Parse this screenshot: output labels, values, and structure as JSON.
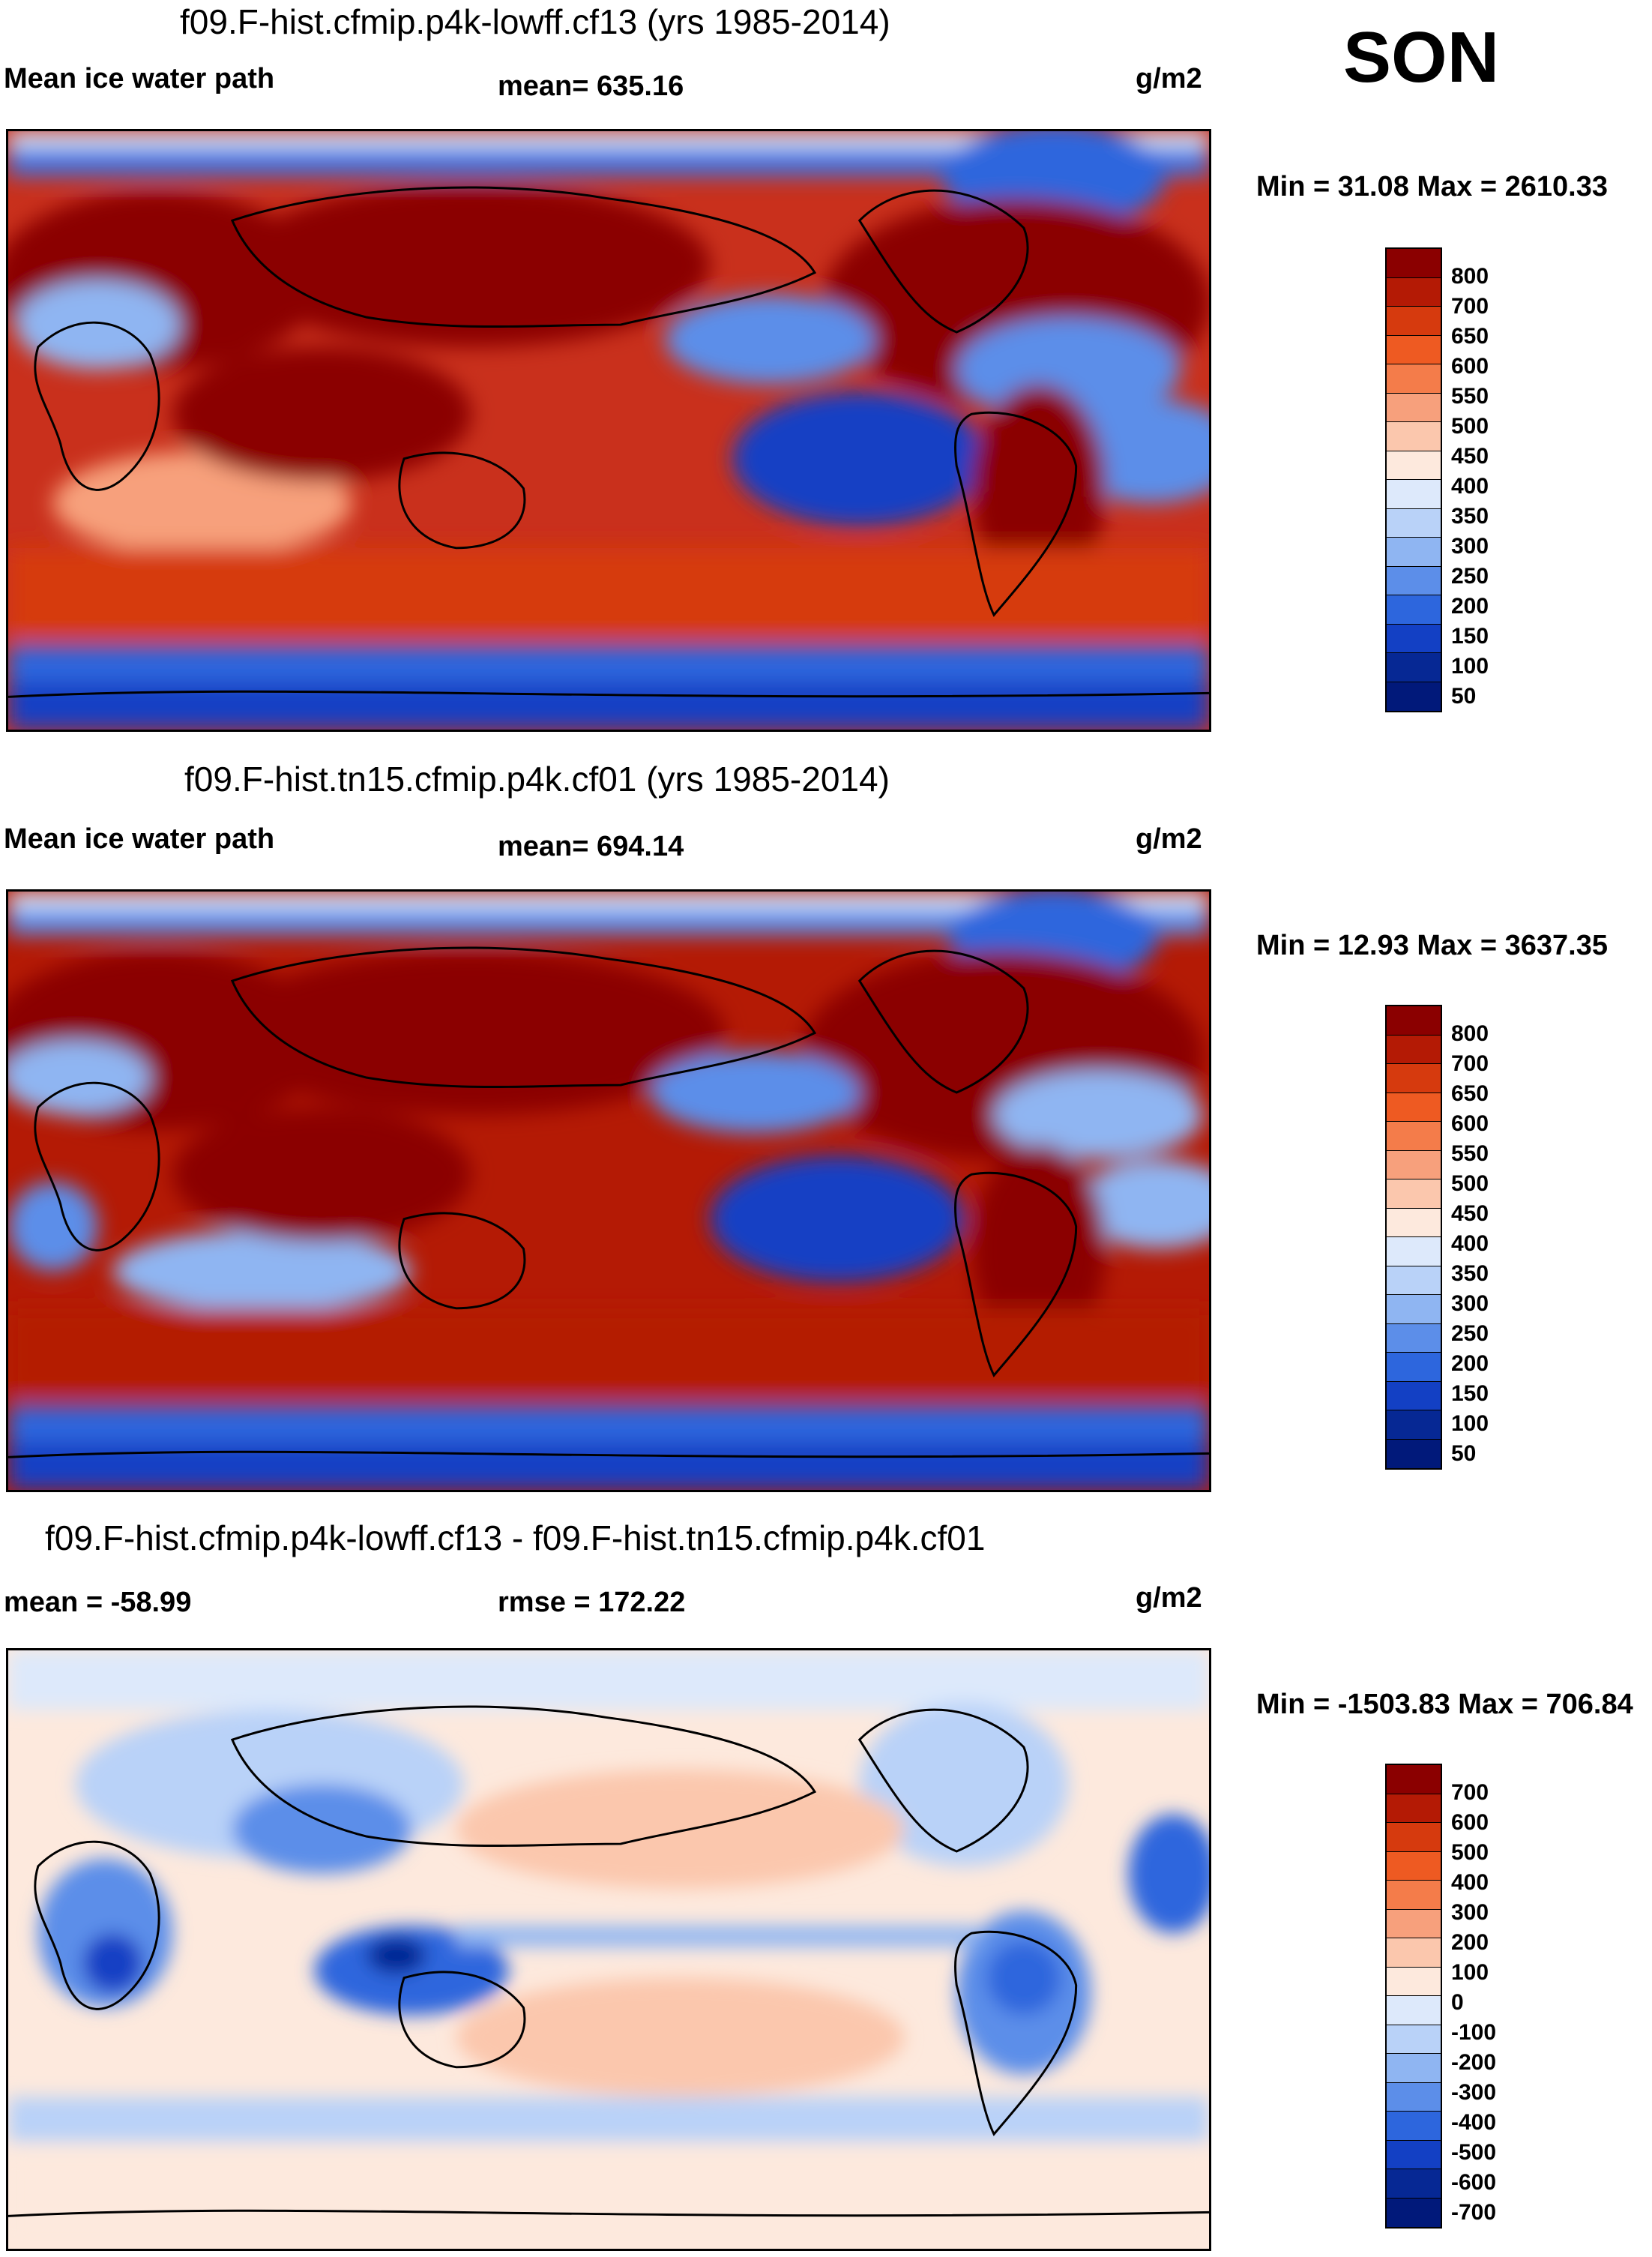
{
  "season": "SON",
  "units": "g/m2",
  "panels": [
    {
      "title": "f09.F-hist.cfmip.p4k-lowff.cf13 (yrs 1985-2014)",
      "left_label": "Mean ice water path",
      "center_label": "mean= 635.16",
      "unit_label": "g/m2",
      "minmax": "Min =  31.08 Max = 2610.33",
      "colorbar": {
        "labels": [
          "800",
          "700",
          "650",
          "600",
          "550",
          "500",
          "450",
          "400",
          "350",
          "300",
          "250",
          "200",
          "150",
          "100",
          "50"
        ],
        "colors": [
          "#8b0000",
          "#b41a05",
          "#d63a0e",
          "#ee5a22",
          "#f47c4a",
          "#f7a07c",
          "#fbc7ad",
          "#fde9dd",
          "#dde9fb",
          "#b9d2f8",
          "#8fb5f2",
          "#5c8ee9",
          "#2d66dd",
          "#1340c4",
          "#062894",
          "#01197a"
        ]
      }
    },
    {
      "title": "f09.F-hist.tn15.cfmip.p4k.cf01 (yrs 1985-2014)",
      "left_label": "Mean ice water path",
      "center_label": "mean= 694.14",
      "unit_label": "g/m2",
      "minmax": "Min =  12.93 Max = 3637.35",
      "colorbar": {
        "labels": [
          "800",
          "700",
          "650",
          "600",
          "550",
          "500",
          "450",
          "400",
          "350",
          "300",
          "250",
          "200",
          "150",
          "100",
          "50"
        ],
        "colors": [
          "#8b0000",
          "#b41a05",
          "#d63a0e",
          "#ee5a22",
          "#f47c4a",
          "#f7a07c",
          "#fbc7ad",
          "#fde9dd",
          "#dde9fb",
          "#b9d2f8",
          "#8fb5f2",
          "#5c8ee9",
          "#2d66dd",
          "#1340c4",
          "#062894",
          "#01197a"
        ]
      }
    },
    {
      "title": "f09.F-hist.cfmip.p4k-lowff.cf13 - f09.F-hist.tn15.cfmip.p4k.cf01",
      "left_label": "mean = -58.99",
      "center_label": "rmse = 172.22",
      "unit_label": "g/m2",
      "minmax": "Min = -1503.83 Max = 706.84",
      "colorbar": {
        "labels": [
          "700",
          "600",
          "500",
          "400",
          "300",
          "200",
          "100",
          "0",
          "-100",
          "-200",
          "-300",
          "-400",
          "-500",
          "-600",
          "-700"
        ],
        "colors": [
          "#8b0000",
          "#b41a05",
          "#d63a0e",
          "#ee5a22",
          "#f47c4a",
          "#f7a07c",
          "#fbc7ad",
          "#fde9dd",
          "#dde9fb",
          "#b9d2f8",
          "#8fb5f2",
          "#5c8ee9",
          "#2d66dd",
          "#1340c4",
          "#062894",
          "#01197a"
        ]
      }
    }
  ]
}
